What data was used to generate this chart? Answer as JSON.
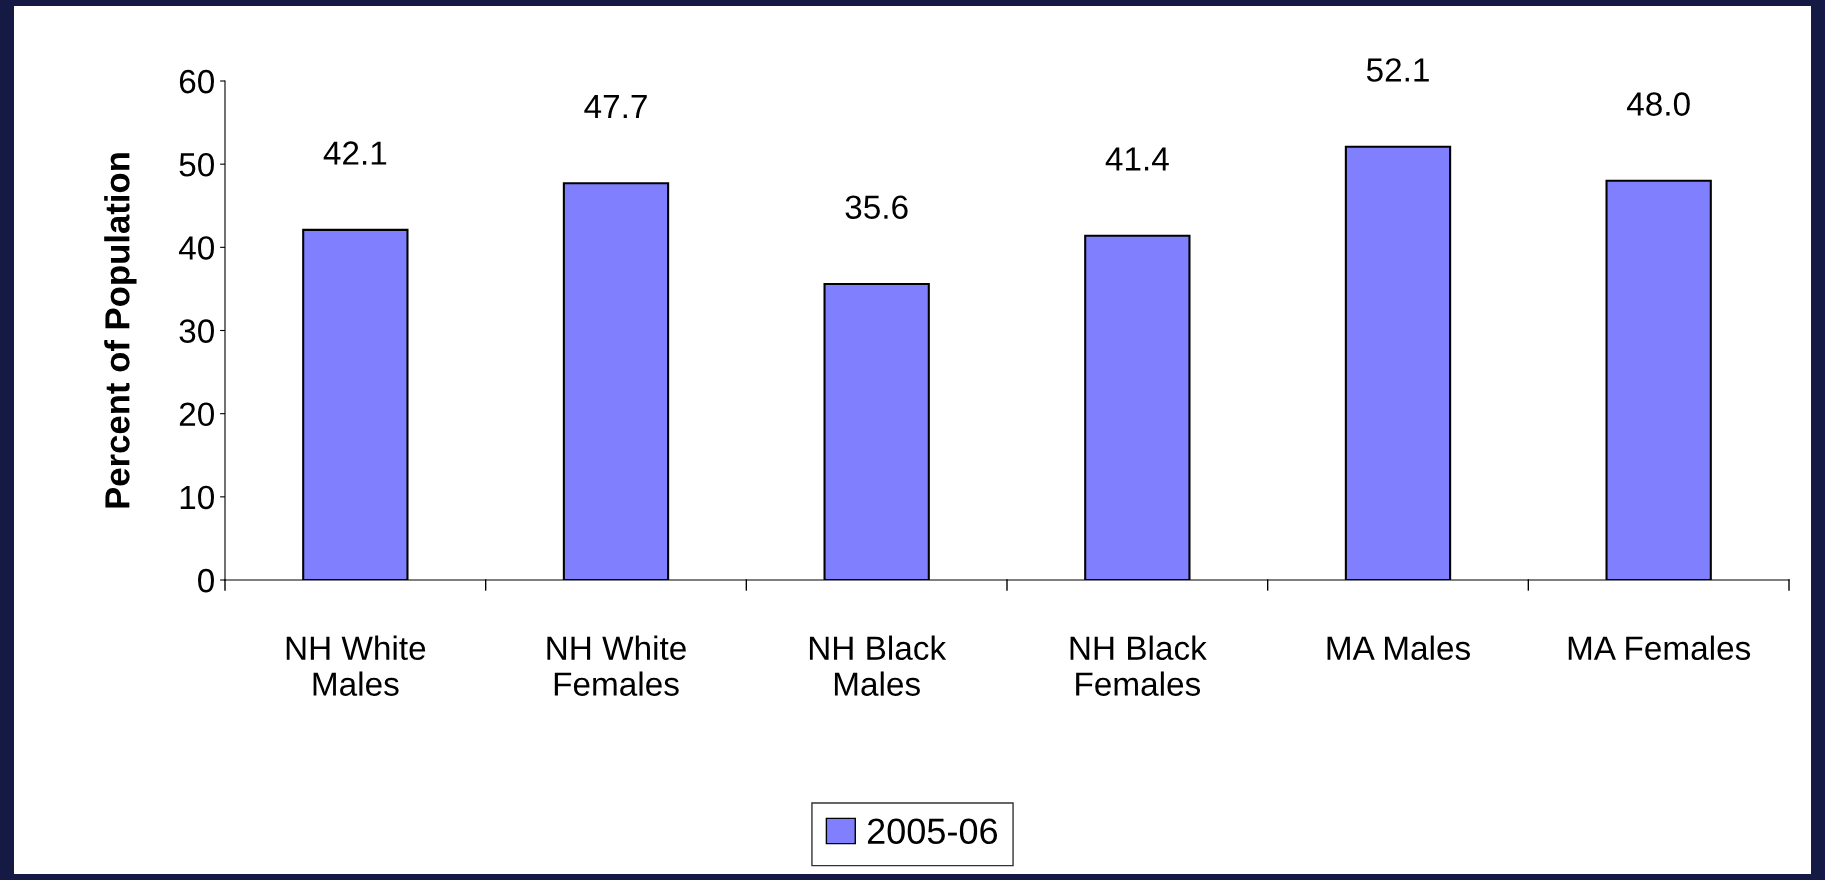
{
  "chart_data": {
    "type": "bar",
    "ylabel": "Percent of Population",
    "categories": [
      "NH White\nMales",
      "NH White\nFemales",
      "NH Black\nMales",
      "NH Black\nFemales",
      "MA Males",
      "MA Females"
    ],
    "series": [
      {
        "name": "2005-06",
        "color": "#8080ff",
        "values": [
          42.1,
          47.7,
          35.6,
          41.4,
          52.1,
          48.0
        ],
        "value_labels": [
          "42.1",
          "47.7",
          "35.6",
          "41.4",
          "52.1",
          "48.0"
        ]
      }
    ],
    "ylim": [
      0,
      60
    ],
    "yticks": [
      0,
      10,
      20,
      30,
      40,
      50,
      60
    ],
    "grid": false,
    "legend": "bottom"
  }
}
